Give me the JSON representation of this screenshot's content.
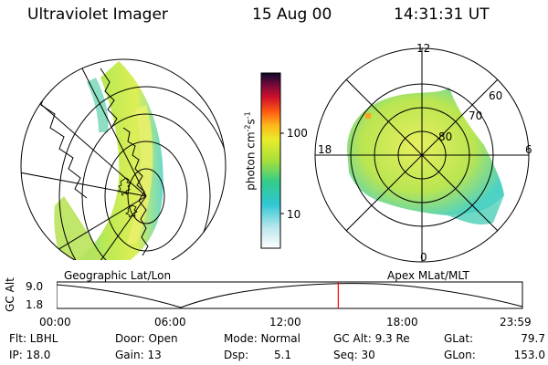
{
  "header": {
    "instrument": "Ultraviolet Imager",
    "date": "15 Aug 00",
    "time": "14:31:31 UT"
  },
  "left_panel": {
    "caption": "Geographic Lat/Lon"
  },
  "colorbar": {
    "axis_label": "photon cm",
    "axis_label_sup1": "-2",
    "axis_label_mid": "s",
    "axis_label_sup2": "-1",
    "ticks": [
      {
        "label": "100",
        "value": 100
      },
      {
        "label": "10",
        "value": 10
      }
    ]
  },
  "right_panel": {
    "caption": "Apex MLat/MLT",
    "mlt_labels": {
      "top": "12",
      "bottom": "0",
      "left": "18",
      "right": "6"
    },
    "lat_labels": [
      "60",
      "70",
      "80"
    ]
  },
  "altitude_plot": {
    "ylabel": "GC Alt",
    "ytick_top": "9.0",
    "ytick_bottom": "1.8",
    "xticks": [
      "00:00",
      "06:00",
      "12:00",
      "18:00",
      "23:59"
    ],
    "current_time_fraction": 0.6046
  },
  "info": {
    "flt": "Flt: LBHL",
    "ip": "IP: 18.0",
    "door": "Door: Open",
    "gain": "Gain: 13",
    "mode": "Mode: Normal",
    "dsp_label": "Dsp:",
    "dsp_value": "5.1",
    "gcalt": "GC Alt: 9.3 Re",
    "seq": "Seq: 30",
    "glat_label": "GLat:",
    "glat_value": "79.7",
    "glon_label": "GLon:",
    "glon_value": "153.0"
  }
}
